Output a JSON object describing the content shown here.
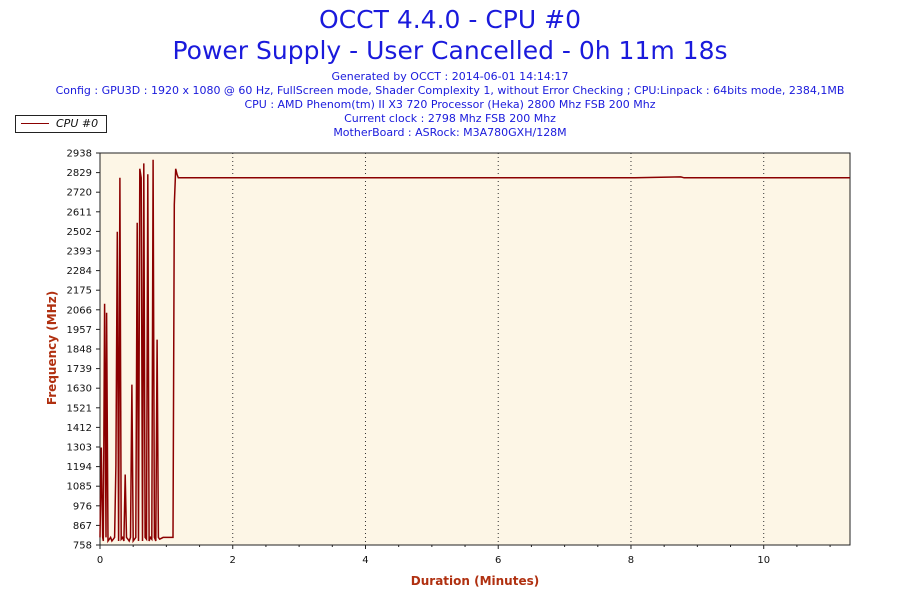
{
  "header": {
    "title_line1": "OCCT 4.4.0 - CPU #0",
    "title_line2": "Power Supply - User Cancelled - 0h 11m 18s",
    "generated": "Generated by OCCT : 2014-06-01 14:14:17",
    "config": "Config : GPU3D : 1920 x 1080 @ 60 Hz, FullScreen mode, Shader Complexity 1, without Error Checking ; CPU:Linpack : 64bits mode, 2384,1MB",
    "cpu": "CPU : AMD Phenom(tm) II X3 720 Processor (Heka) 2800 Mhz FSB 200 Mhz",
    "clock": "Current clock : 2798 Mhz FSB 200 Mhz",
    "motherboard": "MotherBoard : ASRock: M3A780GXH/128M"
  },
  "colors": {
    "title": "#1a1adc",
    "axis_title": "#b03010",
    "plot_bg": "#fdf6e6",
    "series": "#8b0000"
  },
  "chart_data": {
    "type": "line",
    "xlabel": "Duration (Minutes)",
    "ylabel": "Frequency (MHz)",
    "xlim": [
      0,
      11.3
    ],
    "ylim": [
      758,
      2938
    ],
    "x_ticks": [
      0,
      2,
      4,
      6,
      8,
      10
    ],
    "y_ticks": [
      758,
      867,
      976,
      1085,
      1194,
      1303,
      1412,
      1521,
      1630,
      1739,
      1848,
      1957,
      2066,
      2175,
      2284,
      2393,
      2502,
      2611,
      2720,
      2829,
      2938
    ],
    "grid": "vertical dotted at x ticks",
    "legend": "top-left",
    "series": [
      {
        "name": "CPU #0",
        "x": [
          0,
          0.02,
          0.04,
          0.05,
          0.07,
          0.09,
          0.1,
          0.12,
          0.14,
          0.16,
          0.18,
          0.2,
          0.22,
          0.24,
          0.26,
          0.28,
          0.3,
          0.32,
          0.34,
          0.36,
          0.38,
          0.4,
          0.42,
          0.44,
          0.46,
          0.48,
          0.5,
          0.52,
          0.54,
          0.56,
          0.58,
          0.6,
          0.62,
          0.64,
          0.66,
          0.68,
          0.7,
          0.72,
          0.74,
          0.76,
          0.78,
          0.8,
          0.82,
          0.84,
          0.86,
          0.88,
          0.9,
          0.95,
          1.0,
          1.05,
          1.1,
          1.12,
          1.14,
          1.16,
          1.18,
          1.2,
          2,
          4,
          6,
          8,
          8.75,
          8.8,
          10,
          11.3
        ],
        "y": [
          800,
          1300,
          800,
          780,
          2100,
          800,
          2050,
          780,
          790,
          800,
          780,
          790,
          800,
          1200,
          2500,
          780,
          2800,
          790,
          800,
          780,
          1150,
          800,
          790,
          780,
          800,
          1650,
          780,
          790,
          800,
          2550,
          780,
          2850,
          2800,
          780,
          2880,
          800,
          790,
          2820,
          780,
          800,
          790,
          2900,
          800,
          780,
          1900,
          800,
          790,
          800,
          800,
          800,
          800,
          2650,
          2850,
          2820,
          2800,
          2800,
          2800,
          2800,
          2800,
          2800,
          2805,
          2800,
          2800,
          2800
        ]
      }
    ]
  }
}
